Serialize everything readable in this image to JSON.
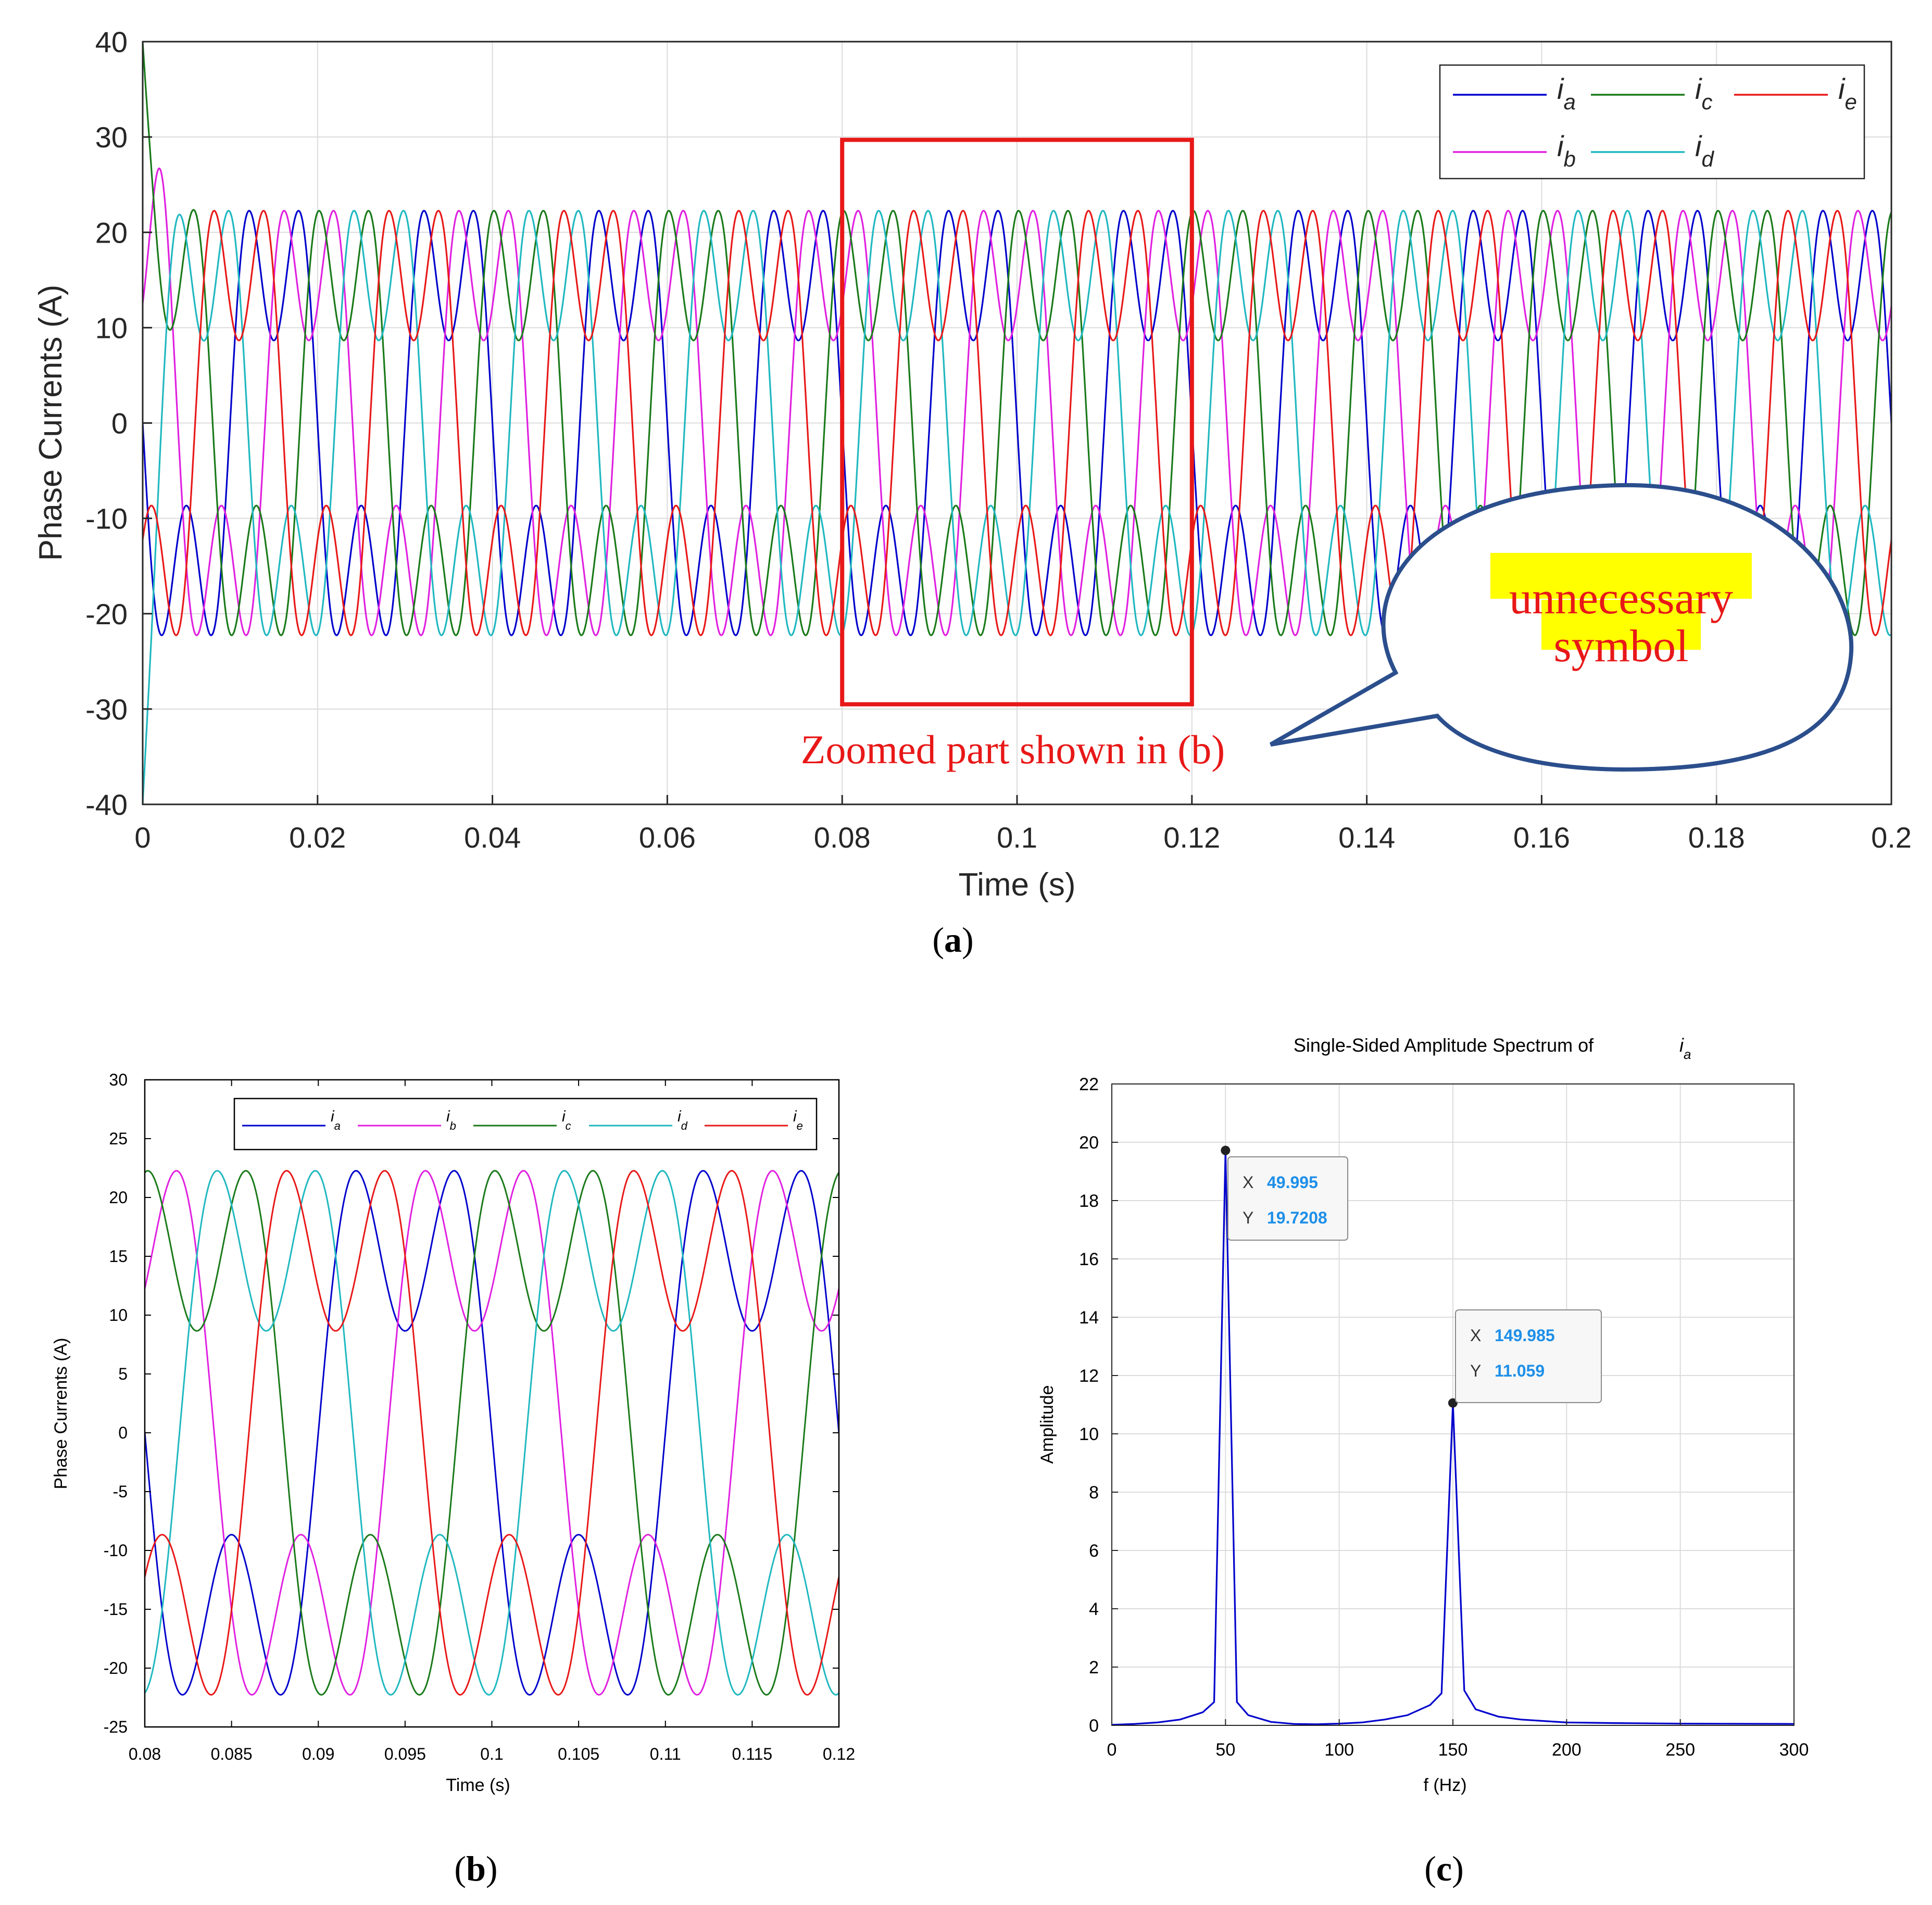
{
  "chart_data": [
    {
      "panel_label": "(a)",
      "type": "line",
      "xlabel": "Time (s)",
      "ylabel": "Phase Currents (A)",
      "xlim": [
        0,
        0.2
      ],
      "ylim": [
        -40,
        40
      ],
      "xticks": [
        "0",
        "0.02",
        "0.04",
        "0.06",
        "0.08",
        "0.1",
        "0.12",
        "0.14",
        "0.16",
        "0.18",
        "0.2"
      ],
      "yticks": [
        "40",
        "30",
        "20",
        "10",
        "0",
        "-10",
        "-20",
        "-30",
        "-40"
      ],
      "grid": true,
      "legend_position": "top-right",
      "signal_model": {
        "frequency_hz": 50,
        "fundamental_amplitude": 19.72,
        "third_harmonic_amplitude": 11.06,
        "peak": 22.6
      },
      "series": [
        {
          "name": "i_a",
          "color": "#0000CC",
          "phase_deg": 0
        },
        {
          "name": "i_b",
          "color": "#E020E0",
          "phase_deg": 72
        },
        {
          "name": "i_c",
          "color": "#1A7A1A",
          "phase_deg": 144
        },
        {
          "name": "i_d",
          "color": "#20B8C0",
          "phase_deg": 216
        },
        {
          "name": "i_e",
          "color": "#E81818",
          "phase_deg": 288
        }
      ],
      "startup_transient": {
        "i_c_start": 40,
        "i_d_start": -40,
        "i_b_peak": 25.7,
        "i_e_min": -23.5,
        "i_a_min": -25
      },
      "annotations": {
        "zoom_box": {
          "x_range": [
            0.08,
            0.12
          ],
          "y_range": [
            -29.5,
            29.7
          ],
          "color": "#E81818"
        },
        "zoom_text": "Zoomed part shown in (b)",
        "bubble_text_line1": "unnecessary",
        "bubble_text_line2": "symbol",
        "bubble_highlight": "#FFFF00",
        "bubble_outline": "#2B4E8C"
      }
    },
    {
      "panel_label": "(b)",
      "type": "line",
      "xlabel": "Time (s)",
      "ylabel": "Phase Currents (A)",
      "xlim": [
        0.08,
        0.12
      ],
      "ylim": [
        -25,
        30
      ],
      "xticks": [
        "0.08",
        "0.085",
        "0.09",
        "0.095",
        "0.1",
        "0.105",
        "0.11",
        "0.115",
        "0.12"
      ],
      "yticks": [
        "30",
        "25",
        "20",
        "15",
        "10",
        "5",
        "0",
        "-5",
        "-10",
        "-15",
        "-20",
        "-25"
      ],
      "grid": false,
      "legend_position": "top",
      "series": [
        {
          "name": "i_a",
          "color": "#0000CC"
        },
        {
          "name": "i_b",
          "color": "#E020E0"
        },
        {
          "name": "i_c",
          "color": "#1A7A1A"
        },
        {
          "name": "i_d",
          "color": "#20B8C0"
        },
        {
          "name": "i_e",
          "color": "#E81818"
        }
      ]
    },
    {
      "panel_label": "(c)",
      "type": "line",
      "title": "Single-Sided Amplitude Spectrum of",
      "title_symbol": "i_a",
      "xlabel": "f (Hz)",
      "ylabel": "Amplitude",
      "xlim": [
        0,
        300
      ],
      "ylim": [
        0,
        22
      ],
      "xticks": [
        "0",
        "50",
        "100",
        "150",
        "200",
        "250",
        "300"
      ],
      "yticks": [
        "22",
        "20",
        "18",
        "16",
        "14",
        "12",
        "10",
        "8",
        "6",
        "4",
        "2",
        "0"
      ],
      "grid": true,
      "series": [
        {
          "color": "#0000CC",
          "x": [
            0,
            10,
            20,
            30,
            40,
            45,
            50,
            55,
            60,
            70,
            80,
            90,
            100,
            110,
            120,
            130,
            140,
            145,
            150,
            155,
            160,
            170,
            180,
            190,
            200,
            220,
            250,
            300
          ],
          "y": [
            0.02,
            0.05,
            0.1,
            0.2,
            0.45,
            0.8,
            19.72,
            0.8,
            0.35,
            0.12,
            0.05,
            0.04,
            0.06,
            0.1,
            0.2,
            0.35,
            0.7,
            1.1,
            11.06,
            1.2,
            0.55,
            0.3,
            0.2,
            0.15,
            0.1,
            0.08,
            0.06,
            0.05
          ]
        }
      ],
      "datatips": [
        {
          "x_label": "X",
          "x_value": "49.995",
          "y_label": "Y",
          "y_value": "19.7208",
          "x": 49.995,
          "y": 19.7208
        },
        {
          "x_label": "X",
          "x_value": "149.985",
          "y_label": "Y",
          "y_value": "11.059",
          "x": 149.985,
          "y": 11.059
        }
      ],
      "datatip_value_color": "#1E8FE8"
    }
  ],
  "legend": {
    "symbol": "i",
    "subscripts": [
      "a",
      "b",
      "c",
      "d",
      "e"
    ]
  },
  "panel_labels": {
    "a": "a",
    "b": "b",
    "c": "c"
  }
}
